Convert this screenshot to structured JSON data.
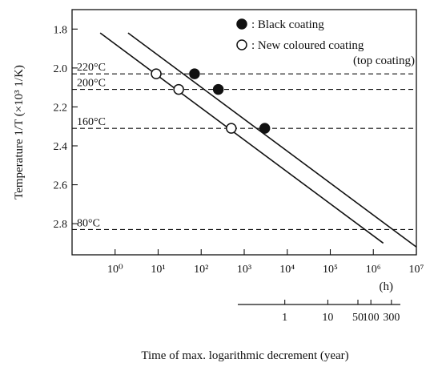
{
  "chart_data": {
    "type": "line",
    "xlabel_unit": "(h)",
    "xlabel_year": "Time of max. logarithmic decrement (year)",
    "ylabel": "Temperature 1/T (×10³ 1/K)",
    "x_scale": "log",
    "xlim_hours": [
      0.1,
      10000000
    ],
    "ylim": [
      1.7,
      2.96
    ],
    "y_reversed": true,
    "x_ticks_hours": [
      1,
      10,
      100,
      1000,
      10000,
      100000,
      1000000,
      10000000
    ],
    "x_tick_labels": [
      "10⁰",
      "10¹",
      "10²",
      "10³",
      "10⁴",
      "10⁵",
      "10⁶",
      "10⁷"
    ],
    "y_ticks": [
      1.8,
      2.0,
      2.2,
      2.4,
      2.6,
      2.8
    ],
    "y_tick_labels": [
      "1.8",
      "2.0",
      "2.2",
      "2.4",
      "2.6",
      "2.8"
    ],
    "year_ticks": [
      {
        "years": 1,
        "label": "1"
      },
      {
        "years": 10,
        "label": "10"
      },
      {
        "years": 50,
        "label": "50"
      },
      {
        "years": 100,
        "label": "100"
      },
      {
        "years": 300,
        "label": "300"
      }
    ],
    "hours_per_year": 8766,
    "temperature_refs": [
      {
        "label": "220°C",
        "inv_t": 2.03
      },
      {
        "label": "200°C",
        "inv_t": 2.11
      },
      {
        "label": "160°C",
        "inv_t": 2.31
      },
      {
        "label": "80°C",
        "inv_t": 2.83
      }
    ],
    "series": [
      {
        "name": "Black coating",
        "legend_text": ": Black coating",
        "marker": "filled",
        "points": [
          [
            70,
            2.03
          ],
          [
            250,
            2.11
          ],
          [
            3000,
            2.31
          ]
        ],
        "line": [
          [
            2,
            1.82
          ],
          [
            10000000,
            2.92
          ]
        ]
      },
      {
        "name": "New coloured coating (top coating)",
        "legend_text": ": New coloured coating",
        "legend_text_2": "(top coating)",
        "marker": "open",
        "points": [
          [
            9,
            2.03
          ],
          [
            30,
            2.11
          ],
          [
            500,
            2.31
          ]
        ],
        "line": [
          [
            0.45,
            1.82
          ],
          [
            1700000,
            2.9
          ]
        ]
      }
    ]
  }
}
